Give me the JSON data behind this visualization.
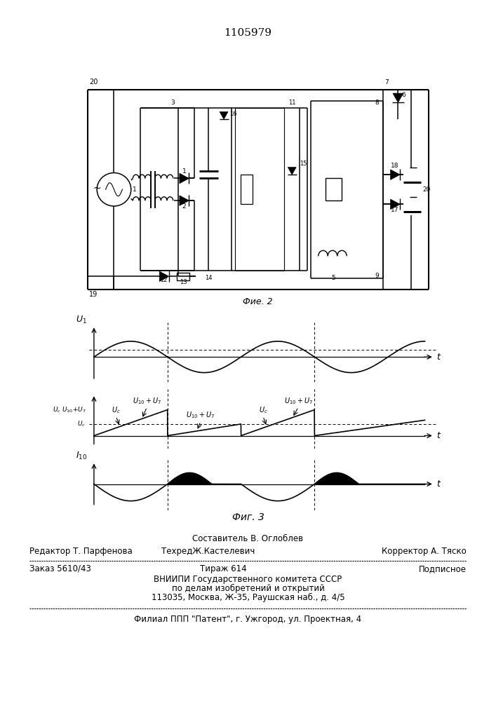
{
  "title_number": "1105979",
  "fig2_label": "Фие. 2",
  "fig3_label": "Фиг. 3",
  "footer_line1": "Составитель В. Оглоблев",
  "footer_line2_left": "Редактор Т. Парфенова",
  "footer_line2_mid": "ТехредЖ.Кастелевич",
  "footer_line2_right": "Корректор А. Тяско",
  "footer_line3_left": "Заказ 5610/43",
  "footer_line3_mid": "Тираж 614",
  "footer_line3_right": "Подписное",
  "footer_line4": "ВНИИПИ Государственного комитета СССР",
  "footer_line5": "по делам изобретений и открытий",
  "footer_line6": "113035, Москва, Ж-35, Раушская наб., д. 4/5",
  "footer_line7": "Филиал ППП \"Патент\", г. Ужгород, ул. Проектная, 4",
  "bg_color": "#ffffff",
  "text_color": "#000000"
}
